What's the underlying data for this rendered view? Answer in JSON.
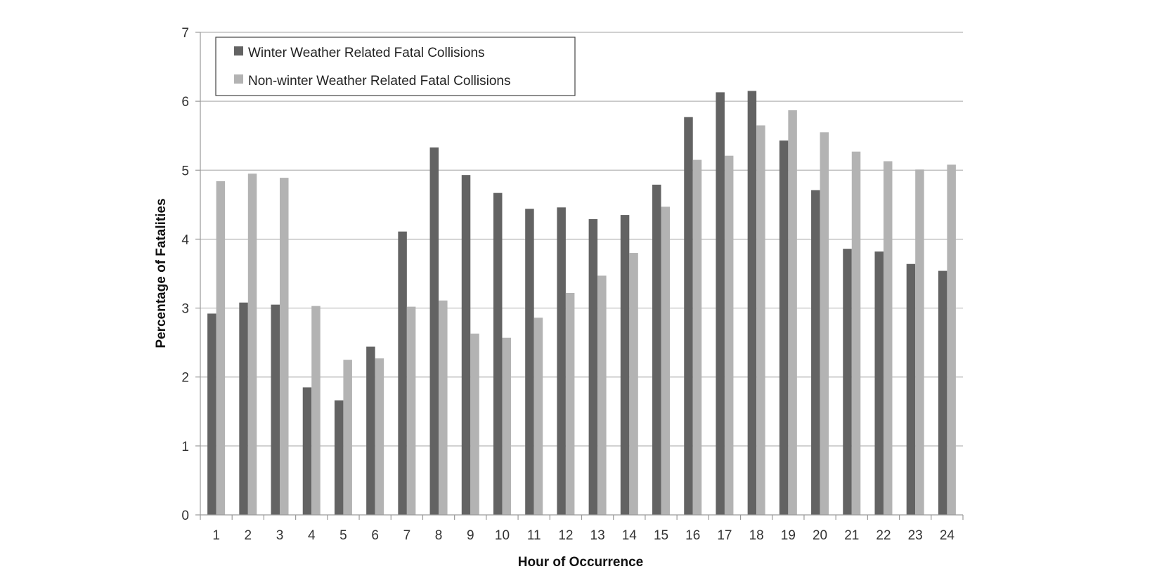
{
  "chart_data": {
    "type": "bar",
    "title": "",
    "xlabel": "Hour of Occurrence",
    "ylabel": "Percentage of Fatalities",
    "ylim": [
      0,
      7
    ],
    "yticks": [
      0,
      1,
      2,
      3,
      4,
      5,
      6,
      7
    ],
    "grid": true,
    "legend_position": "top-left",
    "categories": [
      "1",
      "2",
      "3",
      "4",
      "5",
      "6",
      "7",
      "8",
      "9",
      "10",
      "11",
      "12",
      "13",
      "14",
      "15",
      "16",
      "17",
      "18",
      "19",
      "20",
      "21",
      "22",
      "23",
      "24"
    ],
    "series": [
      {
        "name": "Winter Weather Related Fatal Collisions",
        "color": "#636363",
        "values": [
          2.92,
          3.08,
          3.05,
          1.85,
          1.66,
          2.44,
          4.11,
          5.33,
          4.93,
          4.67,
          4.44,
          4.46,
          4.29,
          4.35,
          4.79,
          5.77,
          6.13,
          6.15,
          5.43,
          4.71,
          3.86,
          3.82,
          3.64,
          3.54
        ]
      },
      {
        "name": "Non-winter Weather Related Fatal Collisions",
        "color": "#b3b3b3",
        "values": [
          4.84,
          4.95,
          4.89,
          3.03,
          2.25,
          2.27,
          3.02,
          3.11,
          2.63,
          2.57,
          2.86,
          3.22,
          3.47,
          3.8,
          4.47,
          5.15,
          5.21,
          5.65,
          5.87,
          5.55,
          5.27,
          5.13,
          5.01,
          5.08
        ]
      }
    ]
  }
}
